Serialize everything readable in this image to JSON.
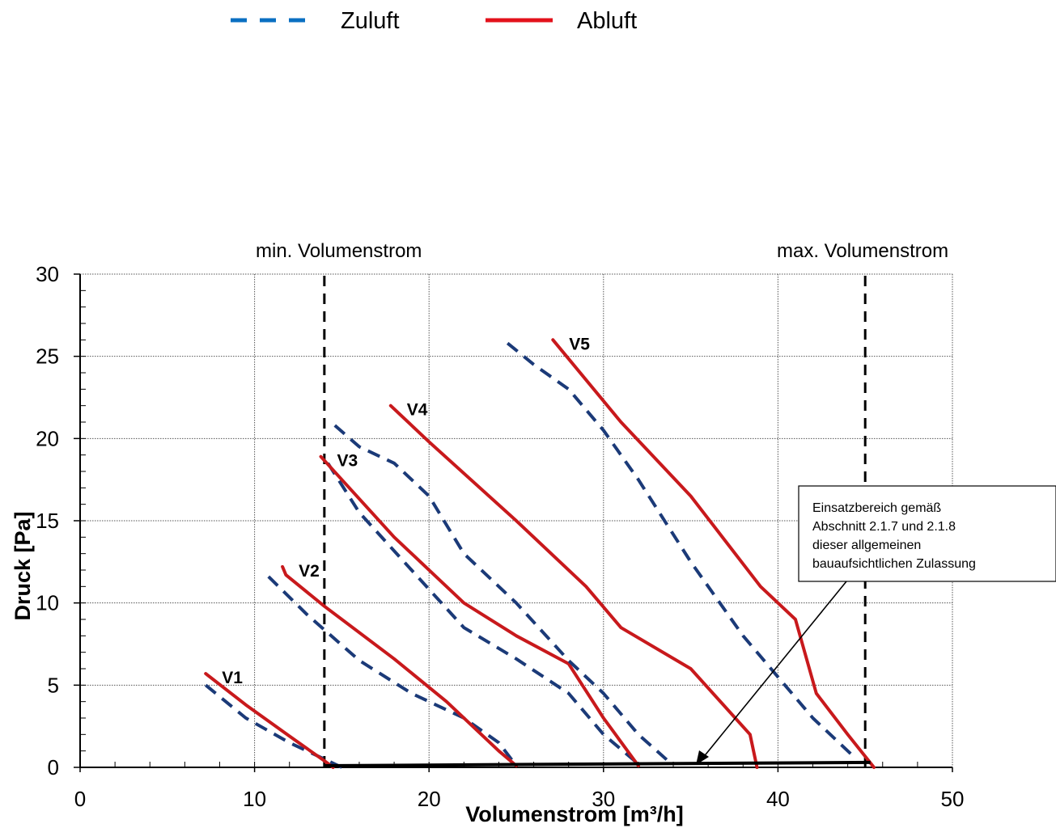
{
  "legend": {
    "items": [
      {
        "label": "Zuluft",
        "color": "#0a6fc2",
        "style": "dashed"
      },
      {
        "label": "Abluft",
        "color": "#e3111b",
        "style": "solid"
      }
    ]
  },
  "markers": {
    "min_label": "min. Volumenstrom",
    "max_label": "max. Volumenstrom"
  },
  "annotation": {
    "lines": [
      "Einsatzbereich gemäß",
      "Abschnitt  2.1.7 und 2.1.8",
      "dieser allgemeinen",
      "bauaufsichtlichen Zulassung"
    ]
  },
  "chart_data": {
    "type": "line",
    "title": "",
    "xlabel": "Volumenstrom  [m³/h]",
    "ylabel": "Druck [Pa]",
    "xlim": [
      0,
      50
    ],
    "ylim": [
      0,
      30
    ],
    "xticks": [
      0,
      10,
      20,
      30,
      40,
      50
    ],
    "yticks": [
      0,
      5,
      10,
      15,
      20,
      25,
      30
    ],
    "grid": true,
    "legend_position": "top",
    "colors": {
      "zuluft_line": "#1b3a78",
      "abluft_line": "#c8191c",
      "range_line": "#000000"
    },
    "vertical_markers": [
      {
        "x": 14,
        "label": "min. Volumenstrom"
      },
      {
        "x": 45,
        "label": "max. Volumenstrom"
      }
    ],
    "operating_range": {
      "x": [
        14,
        45.3
      ],
      "y": [
        0.1,
        0.3
      ]
    },
    "series": [
      {
        "label": "V1",
        "zuluft": [
          [
            7.2,
            5.0
          ],
          [
            9.5,
            3.0
          ],
          [
            12.0,
            1.5
          ],
          [
            14.0,
            0.5
          ],
          [
            15.0,
            0.0
          ]
        ],
        "abluft": [
          [
            7.2,
            5.7
          ],
          [
            9.5,
            3.8
          ],
          [
            12.0,
            1.9
          ],
          [
            14.0,
            0.4
          ],
          [
            14.5,
            0.0
          ]
        ]
      },
      {
        "label": "V2",
        "zuluft": [
          [
            10.8,
            11.6
          ],
          [
            13.0,
            9.3
          ],
          [
            16.0,
            6.5
          ],
          [
            19.0,
            4.5
          ],
          [
            22.0,
            3.0
          ],
          [
            24.0,
            1.5
          ],
          [
            25.0,
            0.1
          ]
        ],
        "abluft": [
          [
            11.6,
            12.2
          ],
          [
            11.8,
            11.7
          ],
          [
            14.0,
            9.8
          ],
          [
            18.0,
            6.6
          ],
          [
            21.0,
            4.0
          ],
          [
            24.0,
            1.0
          ],
          [
            25.0,
            0.1
          ]
        ]
      },
      {
        "label": "V3",
        "zuluft": [
          [
            14.2,
            18.5
          ],
          [
            16.0,
            15.5
          ],
          [
            19.0,
            12.0
          ],
          [
            22.0,
            8.5
          ],
          [
            25.0,
            6.6
          ],
          [
            28.0,
            4.5
          ],
          [
            30.0,
            2.0
          ],
          [
            32.0,
            0.2
          ]
        ],
        "abluft": [
          [
            13.8,
            18.9
          ],
          [
            15.0,
            17.5
          ],
          [
            18.0,
            14.0
          ],
          [
            22.0,
            10.0
          ],
          [
            25.0,
            8.0
          ],
          [
            28.0,
            6.3
          ],
          [
            30.0,
            3.0
          ],
          [
            32.0,
            0.1
          ]
        ]
      },
      {
        "label": "V4",
        "zuluft": [
          [
            14.6,
            20.8
          ],
          [
            16.0,
            19.5
          ],
          [
            18.0,
            18.5
          ],
          [
            20.0,
            16.5
          ],
          [
            22.0,
            13.0
          ],
          [
            25.0,
            10.0
          ],
          [
            28.0,
            6.5
          ],
          [
            30.0,
            4.5
          ],
          [
            32.0,
            2.0
          ],
          [
            33.8,
            0.3
          ]
        ],
        "abluft": [
          [
            17.8,
            22.0
          ],
          [
            20.0,
            19.8
          ],
          [
            25.0,
            15.0
          ],
          [
            29.0,
            11.0
          ],
          [
            31.0,
            8.5
          ],
          [
            35.0,
            6.0
          ],
          [
            38.4,
            2.0
          ],
          [
            38.8,
            0.0
          ]
        ]
      },
      {
        "label": "V5",
        "zuluft": [
          [
            24.5,
            25.8
          ],
          [
            26.0,
            24.5
          ],
          [
            28.0,
            23.0
          ],
          [
            30.0,
            20.5
          ],
          [
            32.0,
            17.5
          ],
          [
            35.0,
            12.5
          ],
          [
            38.0,
            8.0
          ],
          [
            40.0,
            5.5
          ],
          [
            42.0,
            3.0
          ],
          [
            44.5,
            0.5
          ]
        ],
        "abluft": [
          [
            27.1,
            26.0
          ],
          [
            31.0,
            21.0
          ],
          [
            35.0,
            16.5
          ],
          [
            39.0,
            11.0
          ],
          [
            41.0,
            9.0
          ],
          [
            42.2,
            4.5
          ],
          [
            44.0,
            2.0
          ],
          [
            45.5,
            0.0
          ]
        ]
      }
    ]
  }
}
